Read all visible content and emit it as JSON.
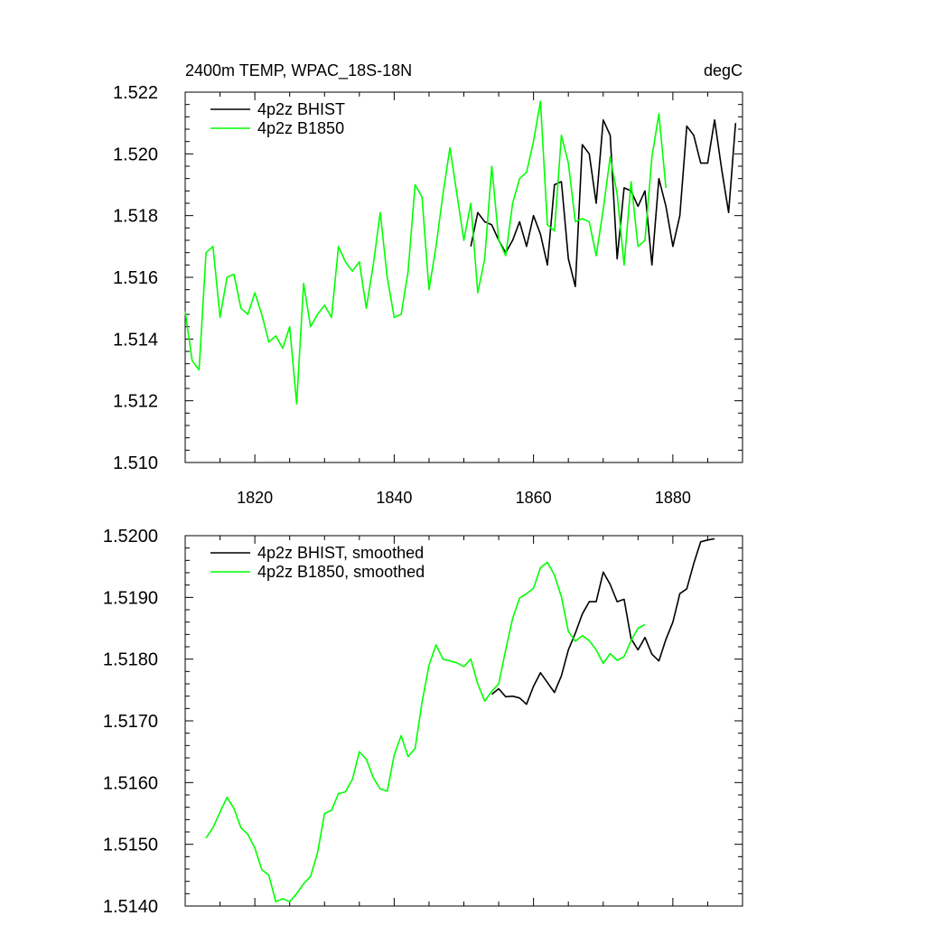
{
  "chart_data": [
    {
      "type": "line",
      "title_left": "2400m TEMP, WPAC_18S-18N",
      "title_right": "degC",
      "xlim": [
        1810,
        1890
      ],
      "ylim": [
        1.51,
        1.522
      ],
      "xticks": [
        1820,
        1840,
        1860,
        1880
      ],
      "xtick_labels": [
        "1820",
        "1840",
        "1860",
        "1880"
      ],
      "yticks": [
        1.51,
        1.512,
        1.514,
        1.516,
        1.518,
        1.52,
        1.522
      ],
      "ytick_labels": [
        "1.510",
        "1.512",
        "1.514",
        "1.516",
        "1.518",
        "1.520",
        "1.522"
      ],
      "legend_position": "top-left",
      "series": [
        {
          "name": "4p2z BHIST",
          "color": "#000000",
          "x": [
            1851,
            1852,
            1853,
            1854,
            1855,
            1856,
            1857,
            1858,
            1859,
            1860,
            1861,
            1862,
            1863,
            1864,
            1865,
            1866,
            1867,
            1868,
            1869,
            1870,
            1871,
            1872,
            1873,
            1874,
            1875,
            1876,
            1877,
            1878,
            1879,
            1880,
            1881,
            1882,
            1883,
            1884,
            1885,
            1886,
            1887,
            1888,
            1889
          ],
          "values": [
            1.517,
            1.5181,
            1.5178,
            1.5177,
            1.5172,
            1.5168,
            1.5172,
            1.5178,
            1.517,
            1.518,
            1.5174,
            1.5164,
            1.519,
            1.5191,
            1.5166,
            1.5157,
            1.5203,
            1.52,
            1.5184,
            1.5211,
            1.5206,
            1.5166,
            1.5189,
            1.5188,
            1.5183,
            1.5188,
            1.5164,
            1.5192,
            1.5183,
            1.517,
            1.518,
            1.5209,
            1.5206,
            1.5197,
            1.5197,
            1.5211,
            1.5195,
            1.5181,
            1.521
          ]
        },
        {
          "name": "4p2z B1850",
          "color": "#00ff00",
          "x": [
            1810,
            1811,
            1812,
            1813,
            1814,
            1815,
            1816,
            1817,
            1818,
            1819,
            1820,
            1821,
            1822,
            1823,
            1824,
            1825,
            1826,
            1827,
            1828,
            1829,
            1830,
            1831,
            1832,
            1833,
            1834,
            1835,
            1836,
            1837,
            1838,
            1839,
            1840,
            1841,
            1842,
            1843,
            1844,
            1845,
            1846,
            1847,
            1848,
            1849,
            1850,
            1851,
            1852,
            1853,
            1854,
            1855,
            1856,
            1857,
            1858,
            1859,
            1860,
            1861,
            1862,
            1863,
            1864,
            1865,
            1866,
            1867,
            1868,
            1869,
            1870,
            1871,
            1872,
            1873,
            1874,
            1875,
            1876,
            1877,
            1878,
            1879
          ],
          "values": [
            1.5149,
            1.5133,
            1.513,
            1.5168,
            1.517,
            1.5147,
            1.516,
            1.5161,
            1.515,
            1.5148,
            1.5155,
            1.5148,
            1.5139,
            1.5141,
            1.5137,
            1.5144,
            1.5119,
            1.5158,
            1.5144,
            1.5148,
            1.5151,
            1.5147,
            1.517,
            1.5165,
            1.5162,
            1.5165,
            1.515,
            1.5164,
            1.5181,
            1.516,
            1.5147,
            1.5148,
            1.5162,
            1.519,
            1.5186,
            1.5156,
            1.517,
            1.5187,
            1.5202,
            1.5187,
            1.5172,
            1.5184,
            1.5155,
            1.5166,
            1.5196,
            1.5172,
            1.5167,
            1.5184,
            1.5192,
            1.5194,
            1.5204,
            1.5217,
            1.5177,
            1.5175,
            1.5206,
            1.5197,
            1.5178,
            1.5179,
            1.5178,
            1.5167,
            1.5182,
            1.5199,
            1.5187,
            1.5164,
            1.5191,
            1.517,
            1.5172,
            1.5199,
            1.5213,
            1.5189
          ]
        }
      ]
    },
    {
      "type": "line",
      "xlim": [
        1810,
        1890
      ],
      "ylim": [
        1.514,
        1.52
      ],
      "xticks": [
        1820,
        1840,
        1860,
        1880
      ],
      "yticks": [
        1.514,
        1.515,
        1.516,
        1.517,
        1.518,
        1.519,
        1.52
      ],
      "ytick_labels": [
        "1.5140",
        "1.5150",
        "1.5160",
        "1.5170",
        "1.5180",
        "1.5190",
        "1.5200"
      ],
      "legend_position": "top-left",
      "series": [
        {
          "name": "4p2z BHIST, smoothed",
          "color": "#000000",
          "x": [
            1854,
            1855,
            1856,
            1857,
            1858,
            1859,
            1860,
            1861,
            1862,
            1863,
            1864,
            1865,
            1866,
            1867,
            1868,
            1869,
            1870,
            1871,
            1872,
            1873,
            1874,
            1875,
            1876,
            1877,
            1878,
            1879,
            1880,
            1881,
            1882,
            1883,
            1884,
            1885,
            1886
          ],
          "values": [
            1.51743,
            1.51752,
            1.51739,
            1.5174,
            1.51737,
            1.51727,
            1.51756,
            1.51778,
            1.51762,
            1.51746,
            1.51773,
            1.51815,
            1.51842,
            1.51873,
            1.51893,
            1.51893,
            1.51941,
            1.51921,
            1.51893,
            1.51897,
            1.51833,
            1.51815,
            1.51835,
            1.51808,
            1.51797,
            1.51832,
            1.5186,
            1.51906,
            1.51914,
            1.51955,
            1.5199,
            1.51993,
            1.51995
          ]
        },
        {
          "name": "4p2z B1850, smoothed",
          "color": "#00ff00",
          "x": [
            1813,
            1814,
            1815,
            1816,
            1817,
            1818,
            1819,
            1820,
            1821,
            1822,
            1823,
            1824,
            1825,
            1826,
            1827,
            1828,
            1829,
            1830,
            1831,
            1832,
            1833,
            1834,
            1835,
            1836,
            1837,
            1838,
            1839,
            1840,
            1841,
            1842,
            1843,
            1844,
            1845,
            1846,
            1847,
            1848,
            1849,
            1850,
            1851,
            1852,
            1853,
            1854,
            1855,
            1856,
            1857,
            1858,
            1859,
            1860,
            1861,
            1862,
            1863,
            1864,
            1865,
            1866,
            1867,
            1868,
            1869,
            1870,
            1871,
            1872,
            1873,
            1874,
            1875,
            1876
          ],
          "values": [
            1.5151,
            1.51527,
            1.51552,
            1.51576,
            1.51558,
            1.51527,
            1.51516,
            1.51494,
            1.51459,
            1.5145,
            1.51407,
            1.51412,
            1.51407,
            1.5142,
            1.51436,
            1.51448,
            1.51486,
            1.5155,
            1.51555,
            1.51582,
            1.51585,
            1.51605,
            1.5165,
            1.51638,
            1.51608,
            1.5159,
            1.51586,
            1.51645,
            1.51676,
            1.51642,
            1.51655,
            1.5173,
            1.5179,
            1.51823,
            1.518,
            1.51797,
            1.51794,
            1.51788,
            1.518,
            1.5176,
            1.51732,
            1.51748,
            1.5176,
            1.51815,
            1.51866,
            1.51899,
            1.51906,
            1.51915,
            1.51948,
            1.51957,
            1.51936,
            1.51901,
            1.51845,
            1.51829,
            1.51838,
            1.5183,
            1.51815,
            1.51793,
            1.51809,
            1.51798,
            1.51804,
            1.5183,
            1.5185,
            1.51856
          ]
        }
      ]
    }
  ]
}
